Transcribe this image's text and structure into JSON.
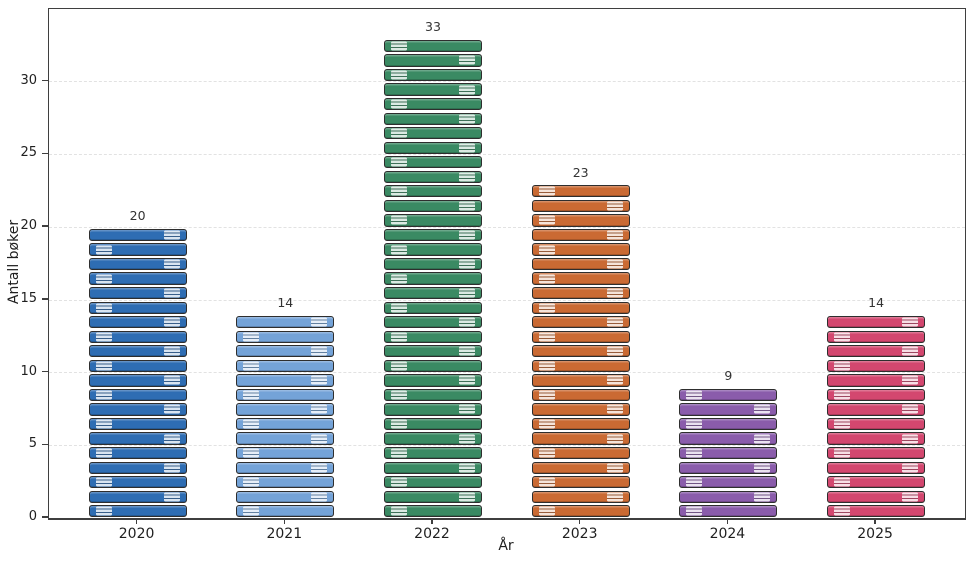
{
  "chart_data": {
    "type": "bar",
    "title": "",
    "categories": [
      "2020",
      "2021",
      "2022",
      "2023",
      "2024",
      "2025"
    ],
    "values": [
      20,
      14,
      33,
      23,
      9,
      14
    ],
    "value_labels": [
      "20",
      "14",
      "33",
      "23",
      "9",
      "14"
    ],
    "xlabel": "År",
    "ylabel": "Antall bøker",
    "ylim": [
      0,
      35
    ],
    "yticks": [
      0,
      5,
      10,
      15,
      20,
      25,
      30
    ],
    "grid": "horizontal-dashed",
    "legend": "none",
    "bar_motif": "each bar rendered as a stack of book spines, one segment per book counted, with pale label stickers alternating left/right from the bottom",
    "bar_colors": [
      "#2e6db3",
      "#74a3d8",
      "#3a8a63",
      "#ca6a33",
      "#8a5cab",
      "#d3476f"
    ]
  },
  "colors": {
    "background": "#ffffff",
    "spine": "#3f3f3f",
    "gridline": "#e2e2e2",
    "tick_text": "#1f1f1f",
    "value_label_text": "#333333",
    "book_border": "#2e2e2e",
    "sticker": "rgba(255,255,255,0.8)"
  }
}
